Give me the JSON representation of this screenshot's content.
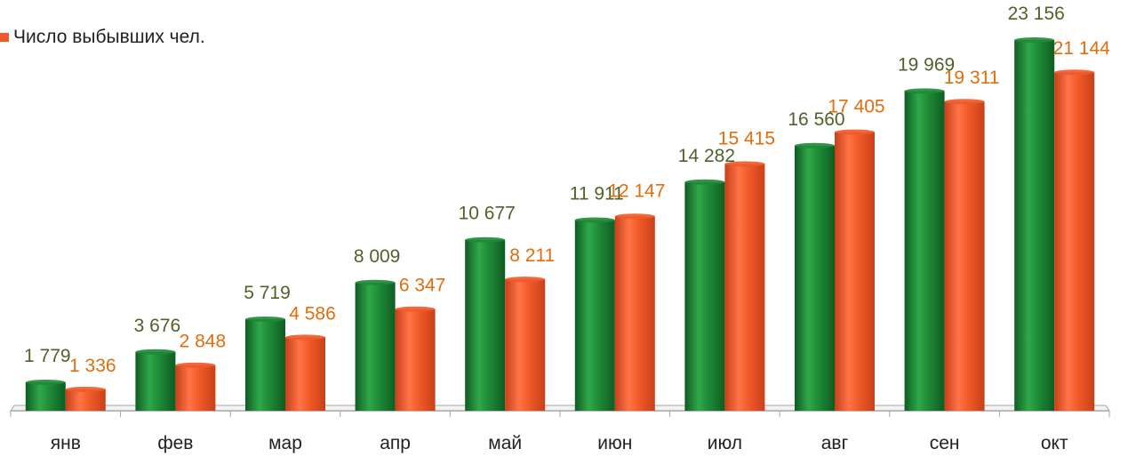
{
  "legend": {
    "series_label": "Число выбывших чел."
  },
  "colors": {
    "series1": "#1e8a36",
    "series2": "#f05a28",
    "label1": "#4f6228",
    "label2": "#e46c0a",
    "axis": "#a6a6a6"
  },
  "chart_data": {
    "type": "bar",
    "title": "",
    "xlabel": "",
    "ylabel": "",
    "ylim": [
      0,
      25000
    ],
    "grid": false,
    "legend_position": "top-left",
    "categories": [
      "янв",
      "фев",
      "мар",
      "апр",
      "май",
      "июн",
      "июл",
      "авг",
      "сен",
      "окт"
    ],
    "series": [
      {
        "values": [
          1779,
          3676,
          5719,
          8009,
          10677,
          11911,
          14282,
          16560,
          19969,
          23156
        ],
        "labels": [
          "1 779",
          "3 676",
          "5 719",
          "8 009",
          "10 677",
          "11 911",
          "14 282",
          "16 560",
          "19 969",
          "23 156"
        ]
      },
      {
        "name": "Число выбывших чел.",
        "values": [
          1336,
          2848,
          4586,
          6347,
          8211,
          12147,
          15415,
          17405,
          19311,
          21144
        ],
        "labels": [
          "1 336",
          "2 848",
          "4 586",
          "6 347",
          "8 211",
          "12 147",
          "15 415",
          "17 405",
          "19 311",
          "21 144"
        ]
      }
    ]
  }
}
